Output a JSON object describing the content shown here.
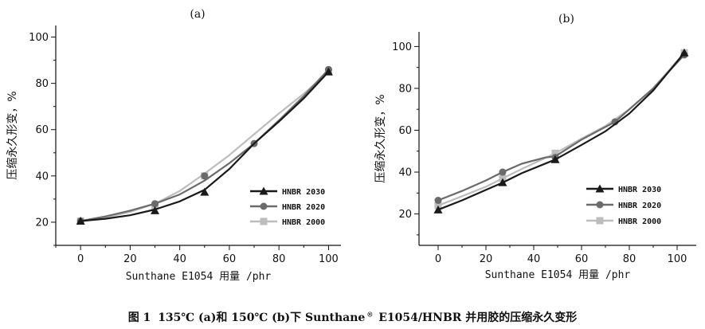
{
  "caption": {
    "fig": "图 1",
    "part1": "135℃ (a)和 150℃ (b)下 Sunthane",
    "reg": "®",
    "part2": "E1054/HNBR 并用胶的压缩永久变形"
  },
  "colors": {
    "HNBR 2030": "#1a1a1a",
    "HNBR 2020": "#6b6b6b",
    "HNBR 2000": "#bdbdbd"
  },
  "chart_data": [
    {
      "id": "a",
      "type": "line",
      "panel_label": "(a)",
      "title": "",
      "xlabel": "Sunthane E1054 用量 /phr",
      "ylabel": "压缩永久形变，%",
      "xlim": [
        -10,
        105
      ],
      "ylim": [
        10,
        105
      ],
      "xticks": [
        0,
        20,
        40,
        60,
        80,
        100
      ],
      "yticks": [
        20,
        40,
        60,
        80,
        100
      ],
      "grid": false,
      "legend_position": "lower-right",
      "series": [
        {
          "name": "HNBR 2030",
          "marker": "triangle",
          "points": [
            [
              0,
              20.5
            ],
            [
              30,
              25
            ],
            [
              50,
              33
            ],
            [
              100,
              85
            ]
          ],
          "curve": [
            [
              0,
              20.5
            ],
            [
              10,
              21.5
            ],
            [
              20,
              23
            ],
            [
              30,
              25.5
            ],
            [
              40,
              29
            ],
            [
              50,
              34
            ],
            [
              60,
              43
            ],
            [
              70,
              54
            ],
            [
              80,
              63.5
            ],
            [
              90,
              73.5
            ],
            [
              100,
              85
            ]
          ]
        },
        {
          "name": "HNBR 2020",
          "marker": "circle",
          "points": [
            [
              0,
              20.5
            ],
            [
              30,
              28
            ],
            [
              50,
              40
            ],
            [
              70,
              54
            ],
            [
              100,
              86
            ]
          ],
          "curve": [
            [
              0,
              20.5
            ],
            [
              10,
              22.5
            ],
            [
              20,
              25
            ],
            [
              30,
              28
            ],
            [
              40,
              32
            ],
            [
              50,
              38
            ],
            [
              60,
              45.5
            ],
            [
              70,
              54
            ],
            [
              80,
              64
            ],
            [
              90,
              74.5
            ],
            [
              100,
              86
            ]
          ]
        },
        {
          "name": "HNBR 2000",
          "marker": "square",
          "points": [
            [
              0,
              20.5
            ],
            [
              30,
              27
            ],
            [
              50,
              40
            ],
            [
              100,
              85
            ]
          ],
          "curve": [
            [
              0,
              20.5
            ],
            [
              10,
              22
            ],
            [
              20,
              24.5
            ],
            [
              30,
              28
            ],
            [
              40,
              33.5
            ],
            [
              50,
              41
            ],
            [
              60,
              49
            ],
            [
              70,
              58
            ],
            [
              80,
              67
            ],
            [
              90,
              75.5
            ],
            [
              100,
              85
            ]
          ]
        }
      ]
    },
    {
      "id": "b",
      "type": "line",
      "panel_label": "(b)",
      "title": "",
      "xlabel": "Sunthane E1054 用量 /phr",
      "ylabel": "压缩永久形变，%",
      "xlim": [
        -8,
        108
      ],
      "ylim": [
        5,
        107
      ],
      "xticks": [
        0,
        20,
        40,
        60,
        80,
        100
      ],
      "yticks": [
        20,
        40,
        60,
        80,
        100
      ],
      "grid": false,
      "legend_position": "lower-right",
      "series": [
        {
          "name": "HNBR 2030",
          "marker": "triangle",
          "points": [
            [
              0,
              22
            ],
            [
              27,
              35
            ],
            [
              49,
              46
            ],
            [
              103,
              97
            ]
          ],
          "curve": [
            [
              0,
              22
            ],
            [
              10,
              26.5
            ],
            [
              20,
              31.5
            ],
            [
              27,
              35
            ],
            [
              35,
              39.5
            ],
            [
              49,
              46
            ],
            [
              60,
              53
            ],
            [
              70,
              59.5
            ],
            [
              80,
              68
            ],
            [
              90,
              79
            ],
            [
              103,
              97
            ]
          ]
        },
        {
          "name": "HNBR 2020",
          "marker": "circle",
          "points": [
            [
              0,
              26.5
            ],
            [
              27,
              40
            ],
            [
              49,
              47
            ],
            [
              74,
              64
            ],
            [
              103,
              96
            ]
          ],
          "curve": [
            [
              0,
              26.5
            ],
            [
              10,
              31
            ],
            [
              20,
              36
            ],
            [
              27,
              40
            ],
            [
              35,
              44
            ],
            [
              45,
              47
            ],
            [
              49,
              47.5
            ],
            [
              60,
              55.5
            ],
            [
              74,
              64
            ],
            [
              90,
              80
            ],
            [
              103,
              96
            ]
          ]
        },
        {
          "name": "HNBR 2000",
          "marker": "square",
          "points": [
            [
              0,
              24
            ],
            [
              27,
              37
            ],
            [
              49,
              49
            ],
            [
              103,
              97
            ]
          ],
          "curve": [
            [
              0,
              24
            ],
            [
              10,
              28.5
            ],
            [
              20,
              33
            ],
            [
              27,
              37
            ],
            [
              35,
              41.5
            ],
            [
              49,
              49
            ],
            [
              60,
              56
            ],
            [
              70,
              62
            ],
            [
              80,
              70
            ],
            [
              90,
              80
            ],
            [
              103,
              97
            ]
          ]
        }
      ]
    }
  ]
}
